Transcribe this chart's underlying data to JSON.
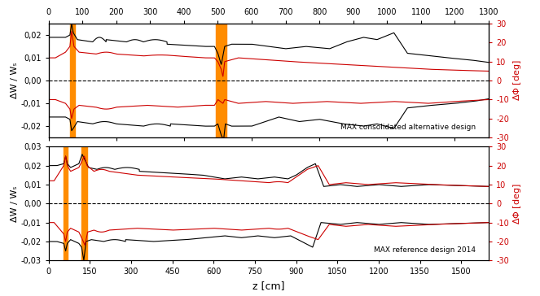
{
  "top_panel": {
    "label": "MAX consolidated alternative design",
    "xlim": [
      0,
      1300
    ],
    "ylim_left": [
      -0.025,
      0.025
    ],
    "ylim_right": [
      -30,
      30
    ],
    "yticks_left": [
      -0.02,
      -0.01,
      0.0,
      0.01,
      0.02
    ],
    "yticks_right": [
      -30,
      -20,
      -10,
      0,
      10,
      20,
      30
    ],
    "xticks_top": [
      0,
      100,
      200,
      300,
      400,
      500,
      600,
      700,
      800,
      900,
      1000,
      1100,
      1200,
      1300
    ],
    "orange_bands": [
      [
        63,
        78
      ],
      [
        495,
        525
      ]
    ]
  },
  "bottom_panel": {
    "label": "MAX reference design 2014",
    "xlim": [
      0,
      1600
    ],
    "ylim_left": [
      -0.03,
      0.03
    ],
    "ylim_right": [
      -30,
      30
    ],
    "yticks_left": [
      -0.03,
      -0.02,
      -0.01,
      0.0,
      0.01,
      0.02,
      0.03
    ],
    "yticks_right": [
      -30,
      -20,
      -10,
      0,
      10,
      20,
      30
    ],
    "xticks_bottom": [
      0,
      150,
      300,
      450,
      600,
      750,
      900,
      1050,
      1200,
      1350,
      1500
    ],
    "orange_bands": [
      [
        55,
        68
      ],
      [
        120,
        140
      ]
    ]
  },
  "xlabel": "z [cm]",
  "ylabel_left": "ΔW / Wₛ",
  "black_color": "#000000",
  "red_color": "#cc0000",
  "orange_color": "#FF8C00"
}
